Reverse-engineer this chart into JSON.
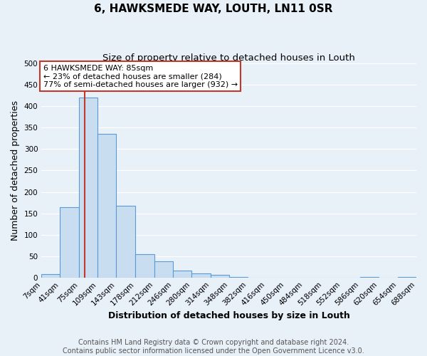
{
  "title": "6, HAWKSMEDE WAY, LOUTH, LN11 0SR",
  "subtitle": "Size of property relative to detached houses in Louth",
  "xlabel": "Distribution of detached houses by size in Louth",
  "ylabel": "Number of detached properties",
  "bin_edges": [
    7,
    41,
    75,
    109,
    143,
    178,
    212,
    246,
    280,
    314,
    348,
    382,
    416,
    450,
    484,
    518,
    552,
    586,
    620,
    654,
    688
  ],
  "bar_heights": [
    8,
    165,
    420,
    335,
    168,
    55,
    38,
    17,
    10,
    7,
    1,
    0,
    0,
    0,
    0,
    0,
    0,
    1,
    0,
    1
  ],
  "bar_color": "#c9ddf0",
  "bar_edge_color": "#5b9bd5",
  "property_line_x": 85,
  "property_line_color": "#c0392b",
  "annotation_line1": "6 HAWKSMEDE WAY: 85sqm",
  "annotation_line2": "← 23% of detached houses are smaller (284)",
  "annotation_line3": "77% of semi-detached houses are larger (932) →",
  "annotation_box_edge_color": "#c0392b",
  "annotation_box_bg": "#ffffff",
  "ylim": [
    0,
    500
  ],
  "yticks": [
    0,
    50,
    100,
    150,
    200,
    250,
    300,
    350,
    400,
    450,
    500
  ],
  "tick_labels": [
    "7sqm",
    "41sqm",
    "75sqm",
    "109sqm",
    "143sqm",
    "178sqm",
    "212sqm",
    "246sqm",
    "280sqm",
    "314sqm",
    "348sqm",
    "382sqm",
    "416sqm",
    "450sqm",
    "484sqm",
    "518sqm",
    "552sqm",
    "586sqm",
    "620sqm",
    "654sqm",
    "688sqm"
  ],
  "footer_text": "Contains HM Land Registry data © Crown copyright and database right 2024.\nContains public sector information licensed under the Open Government Licence v3.0.",
  "bg_color": "#e8f0f8",
  "plot_bg_color": "#e8f0f8",
  "grid_color": "#ffffff",
  "title_fontsize": 11,
  "subtitle_fontsize": 9.5,
  "axis_label_fontsize": 9,
  "tick_fontsize": 7.5,
  "footer_fontsize": 7
}
